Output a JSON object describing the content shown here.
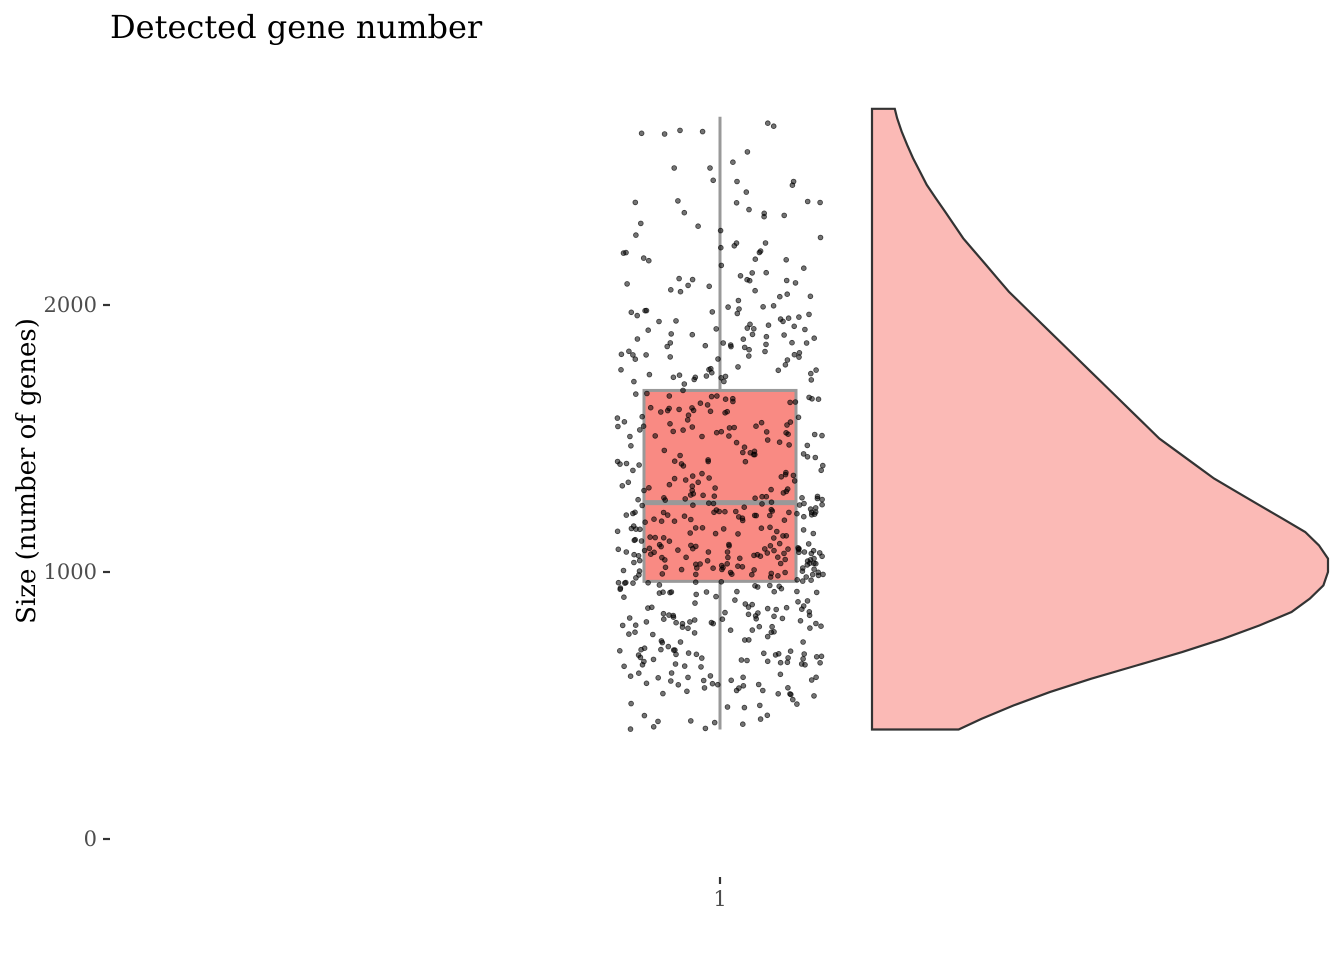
{
  "chart_data": {
    "type": "raincloud",
    "title": "Detected gene number",
    "xlabel": "",
    "ylabel": "Size (number of genes)",
    "x_ticks": [
      "1"
    ],
    "y_ticks": [
      0,
      1000,
      2000
    ],
    "ylim": [
      0,
      2850
    ],
    "grid": false,
    "legend": "none",
    "colors": {
      "box_fill": "#f8766d",
      "box_line": "#999999",
      "violin_fill": "#f8766d",
      "violin_line": "#333333",
      "points": "#000000"
    },
    "box": {
      "min": 410,
      "q1": 965,
      "median": 1260,
      "q3": 1680,
      "max": 2705
    },
    "violin": {
      "y": [
        410,
        450,
        500,
        550,
        600,
        650,
        700,
        750,
        800,
        850,
        900,
        950,
        1000,
        1050,
        1100,
        1150,
        1200,
        1250,
        1300,
        1350,
        1400,
        1450,
        1500,
        1550,
        1600,
        1650,
        1700,
        1750,
        1800,
        1850,
        1900,
        1950,
        2000,
        2050,
        2100,
        2150,
        2200,
        2250,
        2300,
        2350,
        2400,
        2450,
        2500,
        2550,
        2600,
        2650,
        2700,
        2735
      ],
      "density": [
        0.19,
        0.24,
        0.31,
        0.39,
        0.48,
        0.58,
        0.68,
        0.77,
        0.85,
        0.92,
        0.96,
        0.99,
        1.0,
        1.0,
        0.98,
        0.95,
        0.9,
        0.85,
        0.8,
        0.75,
        0.71,
        0.67,
        0.63,
        0.6,
        0.57,
        0.54,
        0.51,
        0.48,
        0.45,
        0.42,
        0.39,
        0.36,
        0.33,
        0.3,
        0.275,
        0.25,
        0.225,
        0.2,
        0.18,
        0.16,
        0.14,
        0.12,
        0.105,
        0.09,
        0.077,
        0.065,
        0.055,
        0.05
      ]
    },
    "points": {
      "count": 600,
      "min": 410,
      "max": 2705
    }
  }
}
